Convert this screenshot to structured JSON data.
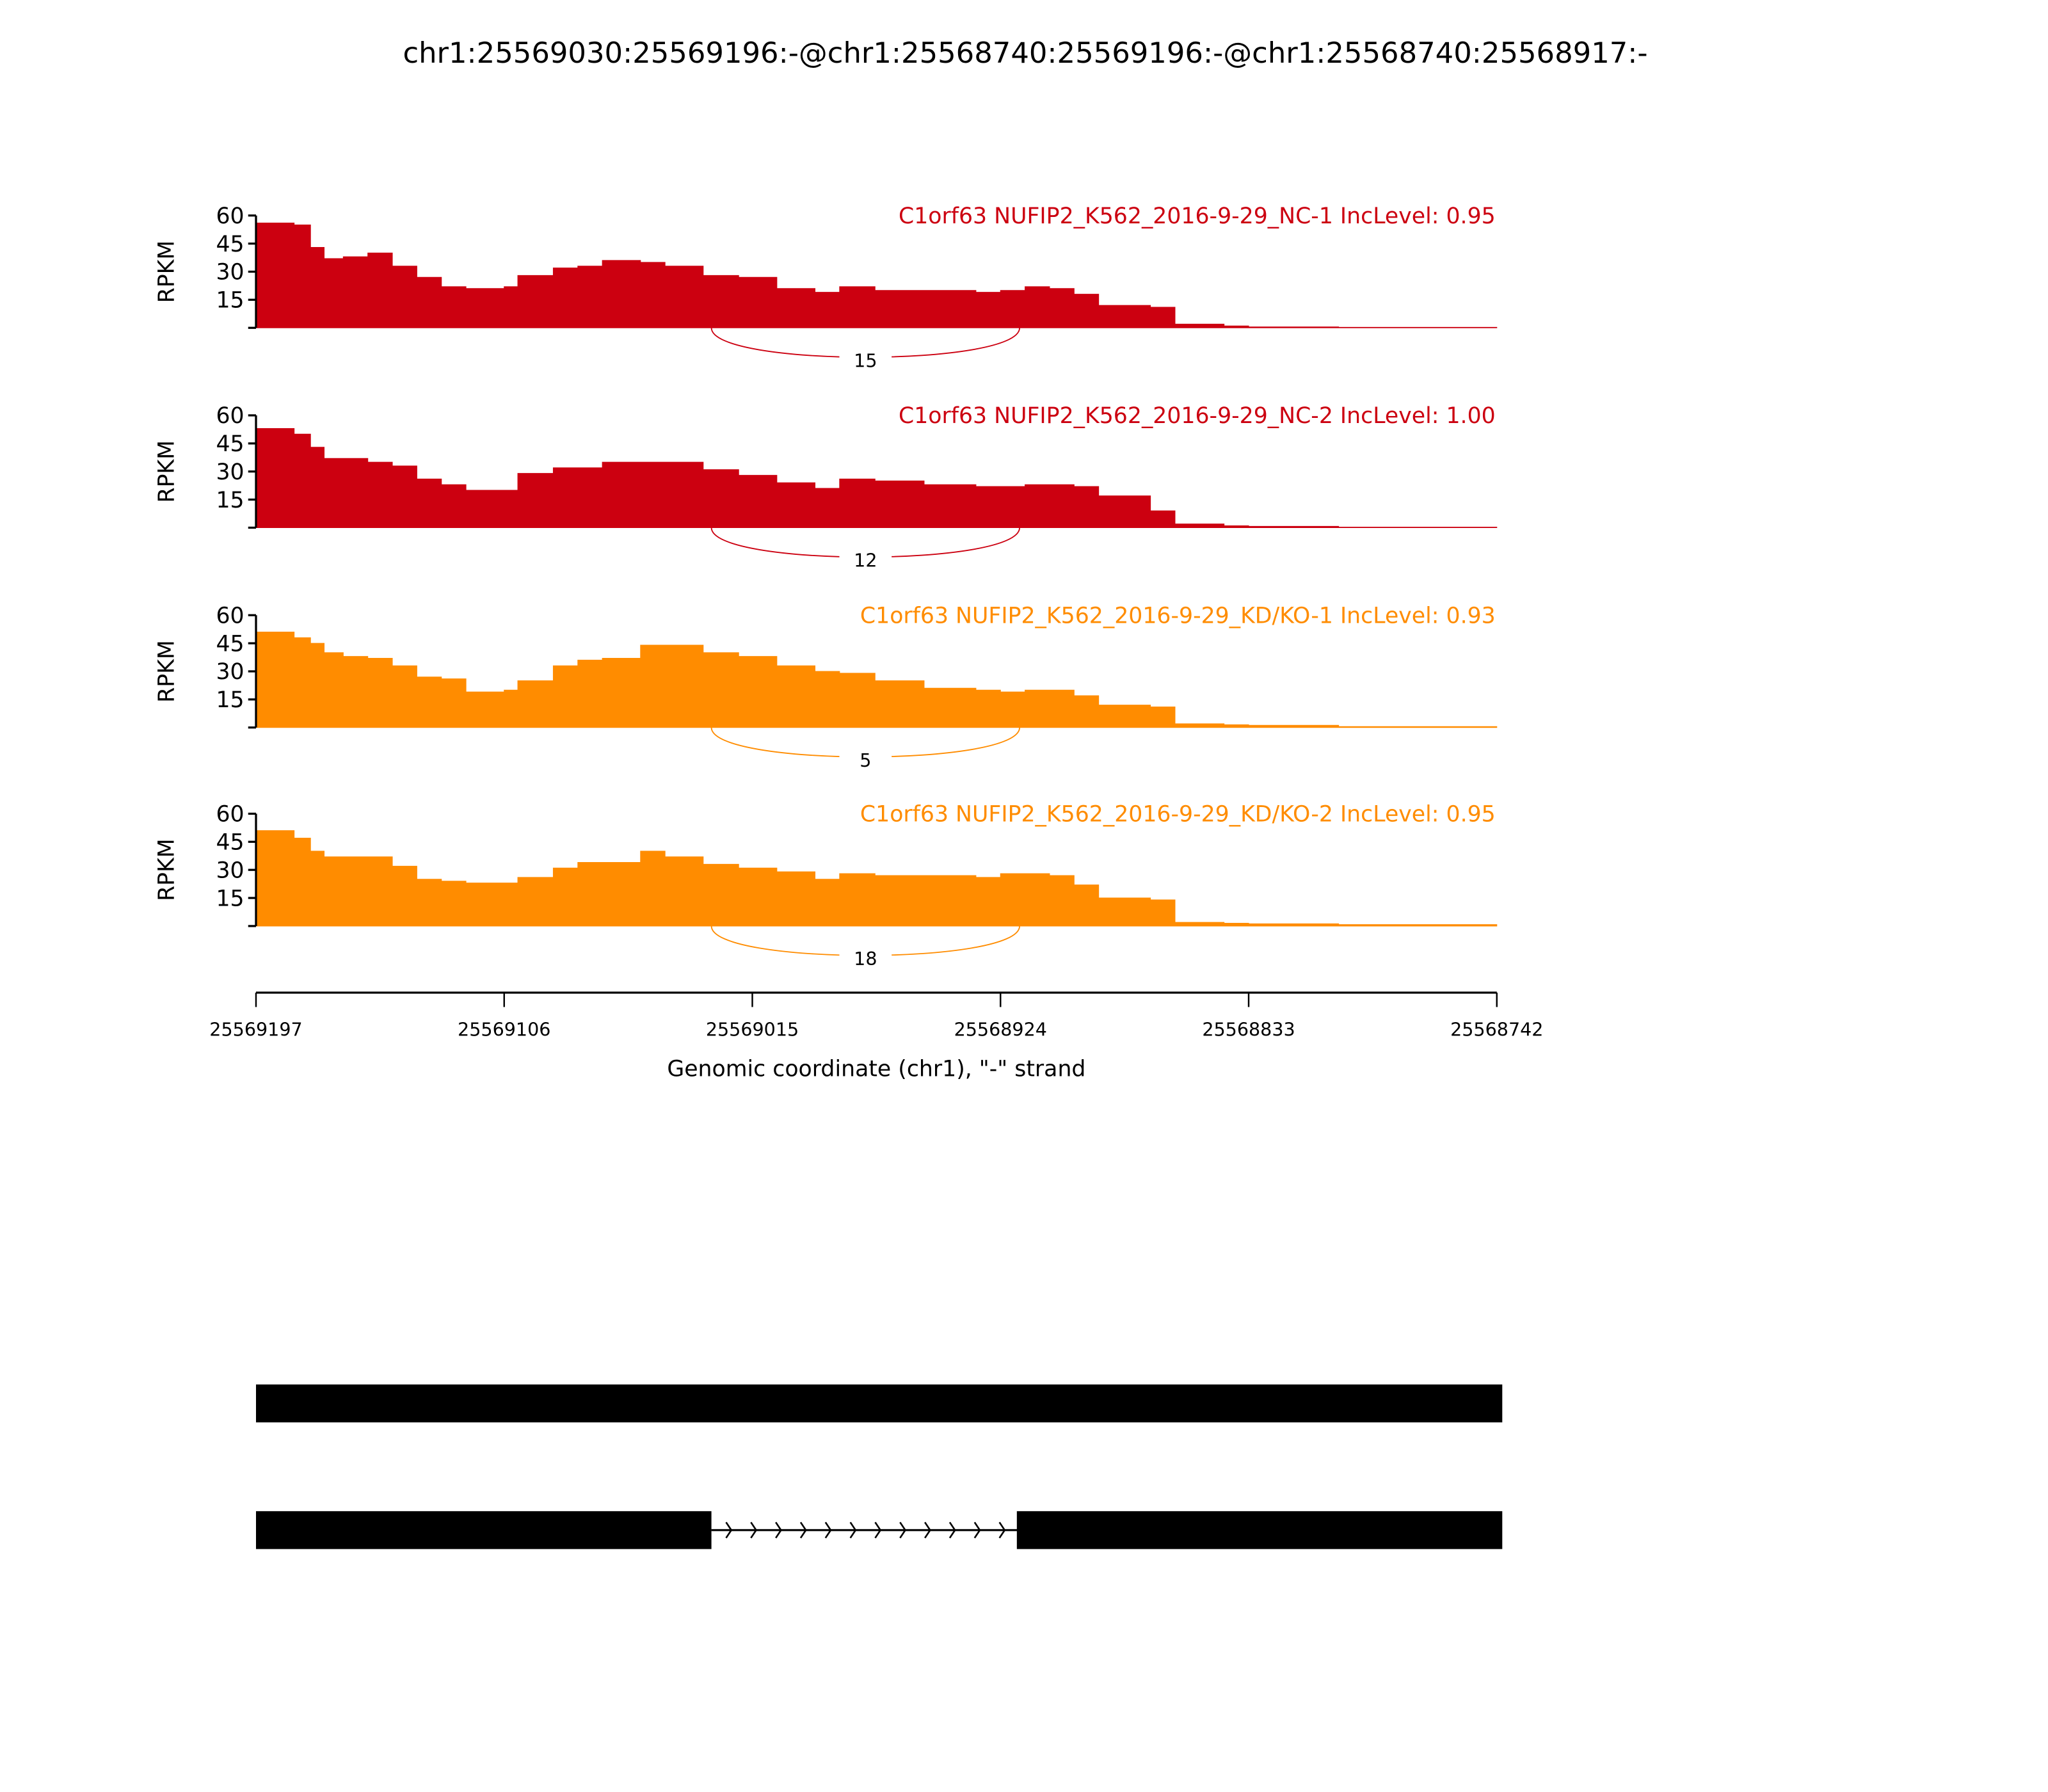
{
  "chart_data": {
    "type": "area",
    "title": "chr1:25569030:25569196:-@chr1:25568740:25569196:-@chr1:25568740:25568917:-",
    "xlabel": "Genomic coordinate (chr1), \"-\" strand",
    "ylabel": "RPKM",
    "xlim": [
      25569197,
      25568742
    ],
    "ylim": [
      0,
      60
    ],
    "x_ticks": [
      "25569197",
      "25569106",
      "25569015",
      "25568924",
      "25568833",
      "25568742"
    ],
    "x_tick_values": [
      25569197,
      25569106,
      25569015,
      25568924,
      25568833,
      25568742
    ],
    "y_ticks": [
      0,
      15,
      30,
      45,
      60
    ],
    "x": [
      25569197,
      25569183,
      25569177,
      25569172,
      25569165,
      25569156,
      25569147,
      25569138,
      25569129,
      25569120,
      25569106,
      25569101,
      25569088,
      25569079,
      25569070,
      25569056,
      25569047,
      25569033,
      25569020,
      25569006,
      25568992,
      25568983,
      25568970,
      25568952,
      25568933,
      25568924,
      25568915,
      25568906,
      25568897,
      25568888,
      25568869,
      25568860,
      25568842,
      25568833,
      25568800,
      25568742
    ],
    "series": [
      {
        "name": "C1orf63 NUFIP2_K562_2016-9-29_NC-1 IncLevel: 0.95",
        "color": "#cc0010",
        "junction_count": "15",
        "values": [
          56,
          55,
          43,
          37,
          38,
          40,
          33,
          27,
          22,
          21,
          22,
          28,
          32,
          33,
          36,
          35,
          33,
          28,
          27,
          21,
          19,
          22,
          20,
          20,
          19,
          20,
          22,
          21,
          18,
          12,
          11,
          2,
          1,
          0.5,
          0.3,
          0.3
        ]
      },
      {
        "name": "C1orf63 NUFIP2_K562_2016-9-29_NC-2 IncLevel: 1.00",
        "color": "#cc0010",
        "junction_count": "12",
        "values": [
          53,
          50,
          43,
          37,
          37,
          35,
          33,
          26,
          23,
          20,
          20,
          29,
          32,
          32,
          35,
          35,
          35,
          31,
          28,
          24,
          21,
          26,
          25,
          23,
          22,
          22,
          23,
          23,
          22,
          17,
          9,
          2,
          1,
          0.7,
          0.3,
          0.3
        ]
      },
      {
        "name": "C1orf63 NUFIP2_K562_2016-9-29_KD/KO-1 IncLevel: 0.93",
        "color": "#ff8c00",
        "junction_count": "5",
        "values": [
          51,
          48,
          45,
          40,
          38,
          37,
          33,
          27,
          26,
          19,
          20,
          25,
          33,
          36,
          37,
          44,
          44,
          40,
          38,
          33,
          30,
          29,
          25,
          21,
          20,
          19,
          20,
          20,
          17,
          12,
          11,
          2,
          1.5,
          1.2,
          0.5,
          0.2
        ]
      },
      {
        "name": "C1orf63 NUFIP2_K562_2016-9-29_KD/KO-2 IncLevel: 0.95",
        "color": "#ff8c00",
        "junction_count": "18",
        "values": [
          51,
          47,
          40,
          37,
          37,
          37,
          32,
          25,
          24,
          23,
          23,
          26,
          31,
          34,
          34,
          40,
          37,
          33,
          31,
          29,
          25,
          28,
          27,
          27,
          26,
          28,
          28,
          27,
          22,
          15,
          14,
          2,
          1.5,
          1.2,
          0.8,
          0.3
        ]
      }
    ],
    "junction": {
      "start": 25569030,
      "end": 25568917
    },
    "transcripts": [
      {
        "exons": [
          [
            25569196,
            25568740
          ]
        ]
      },
      {
        "exons": [
          [
            25569196,
            25569030
          ],
          [
            25568917,
            25568740
          ]
        ],
        "intron_arrows": 12
      }
    ],
    "grid": false
  }
}
